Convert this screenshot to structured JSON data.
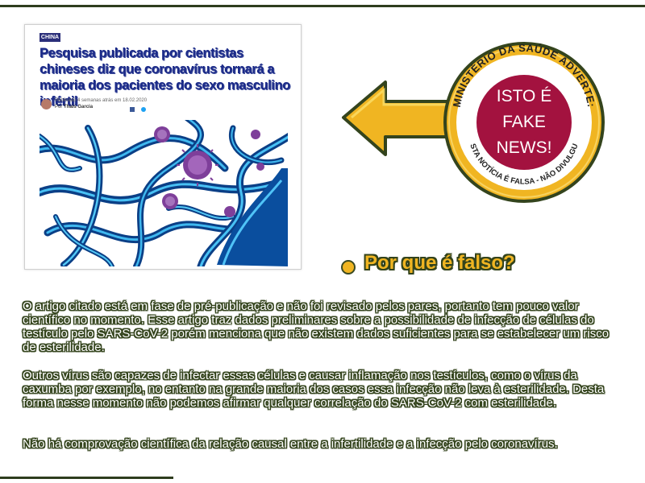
{
  "article": {
    "tag": "CHINA",
    "headline": "Pesquisa publicada por cientistas chineses diz que coronavírus tornará a maioria dos pacientes do sexo masculino infértil",
    "meta_published": "Publicado 4 semanas atrás em 18.02.2020",
    "meta_by": "Por",
    "meta_author": "Thaís Garcia",
    "image": "coronavirus-cells-illustration"
  },
  "stamp": {
    "ring_top": "MINISTÉRIO DA SAÚDE ADVERTE:",
    "ring_bottom": "ESTA NOTÍCIA É FALSA - NÃO DIVULGUE",
    "line1": "ISTO É",
    "line2": "FAKE",
    "line3": "NEWS!"
  },
  "section": {
    "title": "Por que é falso?",
    "paragraphs": [
      "O artigo citado está em fase de pré-publicação e não foi revisado pelos pares, portanto tem pouco valor científico no momento. Esse artigo traz dados preliminares sobre a possibilidade de infecção de células do testículo pelo SARS-CoV-2 porém menciona que não existem dados suficientes para se estabelecer um risco de esterilidade.",
      "Outros vírus são capazes de infectar essas células e causar inflamação nos testículos, como o vírus da caxumba por exemplo, no entanto na grande maioria dos casos essa infecção não leva à esterilidade. Desta forma nesse momento não podemos afirmar qualquer correlação do SARS-CoV-2 com esterilidade.",
      "Não há comprovação científica da relação causal entre a infertilidade e a infecção pelo coronavírus."
    ]
  },
  "colors": {
    "accent": "#f0b522",
    "dark_green": "#2e3d1e",
    "stamp_red": "#a3123f",
    "headline_blue": "#1b2a88"
  }
}
